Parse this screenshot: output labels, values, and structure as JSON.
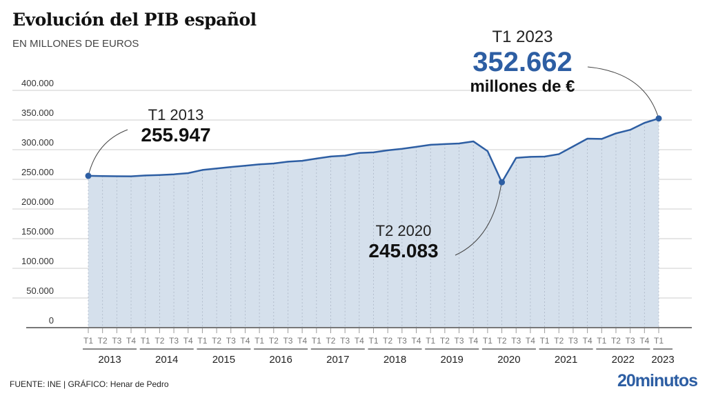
{
  "header": {
    "title": "Evolución del PIB español",
    "subtitle": "EN MILLONES DE EUROS"
  },
  "footer": {
    "source": "FUENTE: INE  |  GRÁFICO: Henar de Pedro",
    "logo": "20minutos"
  },
  "colors": {
    "line": "#2d5ea3",
    "area": "#d5e0ec",
    "grid": "#cccccc",
    "brand": "#2d5ea3"
  },
  "annotations": [
    {
      "label": "T1 2013",
      "value": "255.947"
    },
    {
      "label": "T2 2020",
      "value": "245.083"
    },
    {
      "label": "T1 2023",
      "value": "352.662",
      "unit": "millones de €"
    }
  ],
  "chart_data": {
    "type": "area",
    "title": "Evolución del PIB español",
    "subtitle": "EN MILLONES DE EUROS",
    "ylim": [
      0,
      400000
    ],
    "yticks": [
      0,
      50000,
      100000,
      150000,
      200000,
      250000,
      300000,
      350000,
      400000
    ],
    "ytick_labels": [
      "0",
      "50.000",
      "100.000",
      "150.000",
      "200.000",
      "250.000",
      "300.000",
      "350.000",
      "400.000"
    ],
    "grid": true,
    "quarters": [
      "T1",
      "T2",
      "T3",
      "T4"
    ],
    "years": [
      "2013",
      "2014",
      "2015",
      "2016",
      "2017",
      "2018",
      "2019",
      "2020",
      "2021",
      "2022",
      "2023"
    ],
    "x": [
      "T1 2013",
      "T2 2013",
      "T3 2013",
      "T4 2013",
      "T1 2014",
      "T2 2014",
      "T3 2014",
      "T4 2014",
      "T1 2015",
      "T2 2015",
      "T3 2015",
      "T4 2015",
      "T1 2016",
      "T2 2016",
      "T3 2016",
      "T4 2016",
      "T1 2017",
      "T2 2017",
      "T3 2017",
      "T4 2017",
      "T1 2018",
      "T2 2018",
      "T3 2018",
      "T4 2018",
      "T1 2019",
      "T2 2019",
      "T3 2019",
      "T4 2019",
      "T1 2020",
      "T2 2020",
      "T3 2020",
      "T4 2020",
      "T1 2021",
      "T2 2021",
      "T3 2021",
      "T4 2021",
      "T1 2022",
      "T2 2022",
      "T3 2022",
      "T4 2022",
      "T1 2023"
    ],
    "values": [
      255947,
      255500,
      255300,
      255100,
      256500,
      257300,
      258500,
      260500,
      265800,
      268300,
      270800,
      273000,
      275300,
      276700,
      279800,
      281200,
      285000,
      288500,
      290000,
      294500,
      295500,
      299000,
      301500,
      304800,
      308300,
      309400,
      310500,
      314000,
      297500,
      245083,
      286200,
      288000,
      288400,
      292500,
      305500,
      318600,
      318100,
      327500,
      333500,
      345200,
      352662
    ]
  }
}
